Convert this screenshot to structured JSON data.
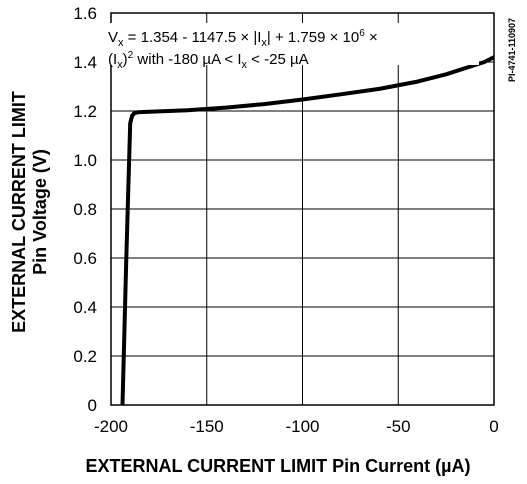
{
  "chart_data": {
    "type": "line",
    "title": "",
    "xlabel": "EXTERNAL CURRENT LIMIT Pin Current (µA)",
    "ylabel_line1": "EXTERNAL CURRENT LIMIT",
    "ylabel_line2": "Pin Voltage (V)",
    "xlim": [
      -200,
      0
    ],
    "ylim": [
      0,
      1.6
    ],
    "x_ticks": [
      -200,
      -150,
      -100,
      -50,
      0
    ],
    "x_tick_labels": [
      "-200",
      "-150",
      "-100",
      "-50",
      "0"
    ],
    "y_ticks": [
      0,
      0.2,
      0.4,
      0.6,
      0.8,
      1.0,
      1.2,
      1.4,
      1.6
    ],
    "y_tick_labels": [
      "0",
      "0.2",
      "0.4",
      "0.6",
      "0.8",
      "1.0",
      "1.2",
      "1.4",
      "1.6"
    ],
    "grid": true,
    "series": [
      {
        "x": [
          -194,
          -192,
          -190,
          -189,
          -188,
          -186,
          -180,
          -160,
          -140,
          -120,
          -100,
          -80,
          -60,
          -40,
          -25,
          -15,
          -5,
          0
        ],
        "y": [
          0.0,
          0.6,
          1.15,
          1.18,
          1.19,
          1.195,
          1.197,
          1.203,
          1.214,
          1.228,
          1.247,
          1.268,
          1.29,
          1.32,
          1.35,
          1.375,
          1.4,
          1.42
        ]
      }
    ],
    "annotation": {
      "line1": {
        "v": "V",
        "v_sub": "x",
        "text_a": " = 1.354 - 1147.5 × ",
        "bar_left": "|",
        "i": "I",
        "i_sub": "x",
        "bar_right": "|",
        "text_b": " + 1.759 × 10",
        "exp": "6",
        "text_c": " ×"
      },
      "line2": {
        "paren_open": "(I",
        "i_sub": "x",
        "paren_close": ")",
        "sq": "2",
        "text_a": " with -180 µA < I",
        "i2_sub": "x",
        "text_b": " < -25 µA"
      }
    },
    "watermark": "PI-4741-110907",
    "colors": {
      "line": "#000000",
      "grid": "#000000",
      "background": "#ffffff"
    }
  }
}
